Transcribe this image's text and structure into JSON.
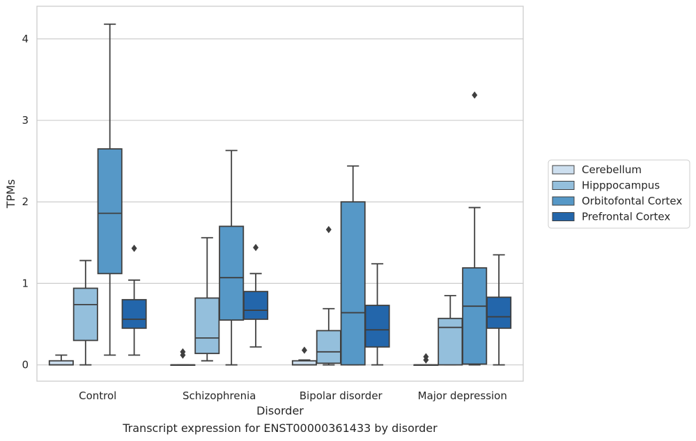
{
  "caption": "Transcript expression for ENST00000361433 by disorder",
  "chart_data": {
    "type": "boxplot",
    "xlabel": "Disorder",
    "ylabel": "TPMs",
    "ylim": [
      -0.2,
      4.4
    ],
    "yticks": [
      0,
      1,
      2,
      3,
      4
    ],
    "grid": "horizontal",
    "legend_position": "right",
    "categories": [
      "Control",
      "Schizophrenia",
      "Bipolar disorder",
      "Major depression"
    ],
    "series": [
      {
        "name": "Cerebellum",
        "color": "#cddfef",
        "boxes": [
          {
            "whislo": 0,
            "q1": 0,
            "med": 0,
            "q3": 0.05,
            "whishi": 0.12,
            "fliers": []
          },
          {
            "whislo": 0,
            "q1": 0,
            "med": 0,
            "q3": 0,
            "whishi": 0,
            "fliers": [
              0.12,
              0.16
            ]
          },
          {
            "whislo": 0,
            "q1": 0,
            "med": 0,
            "q3": 0.05,
            "whishi": 0.06,
            "fliers": [
              0.18
            ]
          },
          {
            "whislo": 0,
            "q1": 0,
            "med": 0,
            "q3": 0,
            "whishi": 0,
            "fliers": [
              0.06,
              0.1
            ]
          }
        ]
      },
      {
        "name": "Hipppocampus",
        "color": "#94bfdc",
        "boxes": [
          {
            "whislo": 0,
            "q1": 0.3,
            "med": 0.74,
            "q3": 0.94,
            "whishi": 1.28,
            "fliers": []
          },
          {
            "whislo": 0.05,
            "q1": 0.14,
            "med": 0.33,
            "q3": 0.82,
            "whishi": 1.56,
            "fliers": []
          },
          {
            "whislo": 0,
            "q1": 0.02,
            "med": 0.16,
            "q3": 0.42,
            "whishi": 0.69,
            "fliers": [
              1.66
            ]
          },
          {
            "whislo": 0,
            "q1": 0,
            "med": 0.46,
            "q3": 0.57,
            "whishi": 0.85,
            "fliers": []
          }
        ]
      },
      {
        "name": "Orbitofontal Cortex",
        "color": "#5698c7",
        "boxes": [
          {
            "whislo": 0.12,
            "q1": 1.12,
            "med": 1.86,
            "q3": 2.65,
            "whishi": 4.18,
            "fliers": []
          },
          {
            "whislo": 0,
            "q1": 0.55,
            "med": 1.07,
            "q3": 1.7,
            "whishi": 2.63,
            "fliers": []
          },
          {
            "whislo": 0,
            "q1": 0,
            "med": 0.64,
            "q3": 2.0,
            "whishi": 2.44,
            "fliers": []
          },
          {
            "whislo": 0,
            "q1": 0.01,
            "med": 0.72,
            "q3": 1.19,
            "whishi": 1.93,
            "fliers": [
              3.31
            ]
          }
        ]
      },
      {
        "name": "Prefrontal Cortex",
        "color": "#2366ab",
        "boxes": [
          {
            "whislo": 0.12,
            "q1": 0.45,
            "med": 0.56,
            "q3": 0.8,
            "whishi": 1.04,
            "fliers": [
              1.43
            ]
          },
          {
            "whislo": 0.22,
            "q1": 0.56,
            "med": 0.67,
            "q3": 0.9,
            "whishi": 1.12,
            "fliers": [
              1.44
            ]
          },
          {
            "whislo": 0,
            "q1": 0.22,
            "med": 0.43,
            "q3": 0.73,
            "whishi": 1.24,
            "fliers": []
          },
          {
            "whislo": 0,
            "q1": 0.45,
            "med": 0.59,
            "q3": 0.83,
            "whishi": 1.35,
            "fliers": []
          }
        ]
      }
    ]
  }
}
